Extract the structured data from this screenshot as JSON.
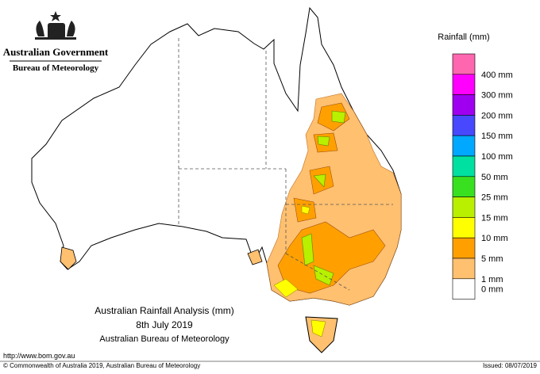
{
  "header": {
    "government": "Australian Government",
    "agency": "Bureau of Meteorology"
  },
  "legend": {
    "title": "Rainfall (mm)",
    "colors": [
      "#ff66b0",
      "#ff00ff",
      "#a000f0",
      "#4848ff",
      "#00a8ff",
      "#00e0a0",
      "#38e020",
      "#b8f000",
      "#ffff00",
      "#ffa000",
      "#ffc070",
      "#ffffff"
    ],
    "labels": [
      "400 mm",
      "300 mm",
      "200 mm",
      "150 mm",
      "100 mm",
      "50 mm",
      "25 mm",
      "15 mm",
      "10 mm",
      "5 mm",
      "1 mm",
      "0 mm"
    ]
  },
  "map_title": {
    "line1": "Australian Rainfall Analysis (mm)",
    "line2": "8th July 2019",
    "line3": "Australian Bureau of Meteorology"
  },
  "footer": {
    "url": "http://www.bom.gov.au",
    "copyright": "© Commonwealth of Australia 2019, Australian Bureau of Meteorology",
    "issued": "Issued: 08/07/2019"
  }
}
